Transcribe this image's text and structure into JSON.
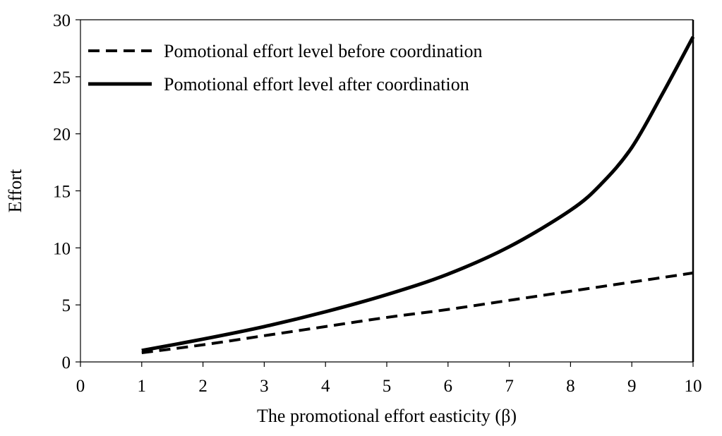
{
  "chart_data": {
    "type": "line",
    "title": "",
    "xlabel": "The promotional effort easticity (β)",
    "ylabel": "Effort",
    "xlim": [
      0,
      10
    ],
    "ylim": [
      0,
      30
    ],
    "x_ticks": [
      "0",
      "1",
      "2",
      "3",
      "4",
      "5",
      "6",
      "7",
      "8",
      "9",
      "10"
    ],
    "y_ticks": [
      "0",
      "5",
      "10",
      "15",
      "20",
      "25",
      "30"
    ],
    "grid": false,
    "legend_position": "top-left",
    "series": [
      {
        "name": "Pomotional effort level before coordination",
        "style": "dashed",
        "color": "#000000",
        "x": [
          1,
          2,
          3,
          4,
          5,
          6,
          7,
          8,
          9,
          10
        ],
        "y": [
          0.8,
          1.5,
          2.3,
          3.1,
          3.9,
          4.6,
          5.4,
          6.2,
          7.0,
          7.8
        ]
      },
      {
        "name": "Pomotional effort level after coordination",
        "style": "solid",
        "color": "#000000",
        "x": [
          1,
          2,
          3,
          4,
          5,
          6,
          7,
          8,
          8.5,
          9,
          9.5,
          10
        ],
        "y": [
          1.0,
          2.0,
          3.1,
          4.4,
          5.9,
          7.7,
          10.1,
          13.3,
          15.6,
          18.8,
          23.5,
          28.5
        ]
      }
    ]
  }
}
